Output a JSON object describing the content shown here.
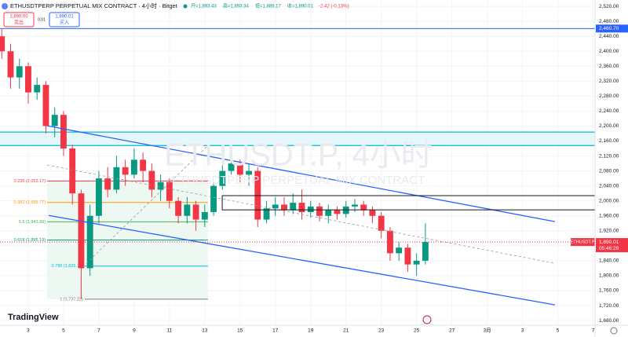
{
  "chart_data": {
    "type": "candlestick",
    "title": "ETHUSDTPERP PERPETUAL MIX CONTRACT · 4小时 · Bitget",
    "ohlc": [
      "开=1,893.43",
      "高=1,893.34",
      "低=1,889.17",
      "收=1,890.01",
      "-2.42 (-0.13%)"
    ],
    "sell": {
      "price": "1,890.00",
      "label": "卖出"
    },
    "spread": "0.01",
    "buy": {
      "price": "1,890.01",
      "label": "买入"
    },
    "watermark": [
      "ETHUSDT.P, 4小时",
      "ETHUSDTPERP PERPETUAL MIX CONTRACT"
    ],
    "logo": "TradingView",
    "up_color": "#089981",
    "down_color": "#f23645",
    "x": [
      1.5,
      2,
      2.5,
      3,
      3.5,
      4,
      4.5,
      5,
      5.5,
      6,
      6.5,
      7,
      7.5,
      8,
      8.5,
      9,
      9.5,
      10,
      10.5,
      11,
      11.5,
      12,
      12.5,
      13,
      13.5,
      14,
      14.5,
      15,
      15.5,
      16,
      16.5,
      17,
      17.5,
      18,
      18.5,
      19,
      19.5,
      20,
      20.5,
      21,
      21.5,
      22,
      22.5,
      23,
      23.5,
      24,
      24.5,
      25,
      25.5
    ],
    "open": [
      2440,
      2400,
      2330,
      2360,
      2290,
      2310,
      2200,
      2230,
      2140,
      2020,
      1820,
      1960,
      2060,
      2030,
      2090,
      2070,
      2110,
      2080,
      2030,
      2050,
      2000,
      1960,
      1990,
      1950,
      1970,
      2040,
      2080,
      2100,
      2070,
      2080,
      1950,
      1980,
      1990,
      1975,
      1995,
      1970,
      1985,
      1960,
      1975,
      1965,
      1985,
      1990,
      1975,
      1960,
      1920,
      1860,
      1875,
      1830,
      1840
    ],
    "high": [
      2460,
      2420,
      2380,
      2370,
      2330,
      2320,
      2250,
      2240,
      2150,
      2030,
      1990,
      2080,
      2090,
      2120,
      2110,
      2140,
      2130,
      2100,
      2070,
      2060,
      2010,
      2010,
      2000,
      1990,
      2050,
      2100,
      2120,
      2110,
      2100,
      2090,
      2000,
      2010,
      2010,
      2020,
      2030,
      2000,
      1995,
      1990,
      1985,
      2000,
      2005,
      2000,
      1985,
      1970,
      1930,
      1890,
      1885,
      1860,
      1940
    ],
    "low": [
      2380,
      2300,
      2300,
      2260,
      2270,
      2180,
      2170,
      2120,
      1990,
      1737,
      1800,
      1940,
      2010,
      2020,
      2040,
      2060,
      2050,
      2010,
      2000,
      1980,
      1940,
      1940,
      1920,
      1930,
      1960,
      2030,
      2070,
      2050,
      2040,
      1930,
      1940,
      1960,
      1960,
      1965,
      1950,
      1955,
      1945,
      1940,
      1950,
      1955,
      1970,
      1960,
      1940,
      1900,
      1840,
      1840,
      1810,
      1800,
      1830
    ],
    "close": [
      2400,
      2330,
      2360,
      2290,
      2310,
      2200,
      2230,
      2140,
      2020,
      1820,
      1960,
      2060,
      2030,
      2090,
      2070,
      2110,
      2080,
      2030,
      2050,
      2000,
      1960,
      1990,
      1950,
      1970,
      2040,
      2080,
      2100,
      2070,
      2080,
      1950,
      1980,
      1990,
      1975,
      1995,
      1970,
      1985,
      1960,
      1975,
      1965,
      1985,
      1990,
      1975,
      1960,
      1920,
      1860,
      1875,
      1830,
      1840,
      1890.01
    ],
    "xlim": [
      1.4,
      35.2
    ],
    "ylim": [
      1655,
      2537
    ],
    "xticks": [
      3,
      5,
      7,
      9,
      11,
      13,
      15,
      17,
      19,
      21,
      23,
      25,
      27,
      {
        "value": 29,
        "label": "3月"
      },
      {
        "value": 31,
        "label": "3"
      },
      {
        "value": 33,
        "label": "5"
      },
      {
        "value": 35,
        "label": "7"
      }
    ],
    "yticks": [
      {
        "value": 1680,
        "label": "1,680.00"
      },
      {
        "value": 1720,
        "label": "1,720.00"
      },
      {
        "value": 1760,
        "label": "1,760.00"
      },
      {
        "value": 1800,
        "label": "1,800.00"
      },
      {
        "value": 1840,
        "label": "1,840.00"
      },
      {
        "value": 1880,
        "label": "1,880.00"
      },
      {
        "value": 1920,
        "label": "1,920.00"
      },
      {
        "value": 1960,
        "label": "1,960.00"
      },
      {
        "value": 2000,
        "label": "2,000.00"
      },
      {
        "value": 2040,
        "label": "2,040.00"
      },
      {
        "value": 2080,
        "label": "2,080.00"
      },
      {
        "value": 2120,
        "label": "2,120.00"
      },
      {
        "value": 2160,
        "label": "2,160.00"
      },
      {
        "value": 2200,
        "label": "2,200.00"
      },
      {
        "value": 2240,
        "label": "2,240.00"
      },
      {
        "value": 2280,
        "label": "2,280.00"
      },
      {
        "value": 2320,
        "label": "2,320.00"
      },
      {
        "value": 2360,
        "label": "2,360.00"
      },
      {
        "value": 2400,
        "label": "2,400.00"
      },
      {
        "value": 2440,
        "label": "2,440.00"
      },
      {
        "value": 2480,
        "label": "2,480.00"
      },
      {
        "value": 2520,
        "label": "2,520.00"
      }
    ],
    "price_line": {
      "value": 2460.7,
      "label": "2,460.70",
      "color": "#2962ff"
    },
    "last_price": {
      "value": 1890.01,
      "label": "1,890.01",
      "symbol": "ETHUSDT.P",
      "countdown": "05:46:29",
      "color": "#f23645"
    },
    "zone_lines": [
      2184,
      2148
    ],
    "fib": [
      {
        "value": 2053.17,
        "label": "0.236 (2,053.17)",
        "color": "#f23645"
      },
      {
        "value": 1995.77,
        "label": "0.382 (1,995.77)",
        "color": "#ff9800"
      },
      {
        "value": 1943.99,
        "label": "0.5 (1,943.99)",
        "color": "#4caf50"
      },
      {
        "value": 1895.19,
        "label": "0.618 (1,895.19)",
        "color": "#089981"
      },
      {
        "value": 1825.72,
        "label": "0.786 (1,825.72)",
        "color": "#00bcd4"
      },
      {
        "value": 1737.22,
        "label": "1 (1,737.22)",
        "color": "#787b86"
      }
    ],
    "channel": [
      {
        "x": [
          4.07,
          32.84
        ],
        "y": [
          2200.8,
          1944.6
        ],
        "color": "#2962ff",
        "dash": false
      },
      {
        "x": [
          4.16,
          32.84
        ],
        "y": [
          1961,
          1722
        ],
        "color": "#2962ff",
        "dash": false
      },
      {
        "x": [
          4.07,
          32.84
        ],
        "y": [
          2095.8,
          1833
        ],
        "color": "#9598a1",
        "dash": true
      },
      {
        "x": [
          6.29,
          13.18
        ],
        "y": [
          1833,
          2148
        ],
        "color": "#9598a1",
        "dash": true
      }
    ],
    "box": {
      "x": [
        13.99,
        35.11
      ],
      "y": [
        1976,
        2014
      ]
    }
  }
}
